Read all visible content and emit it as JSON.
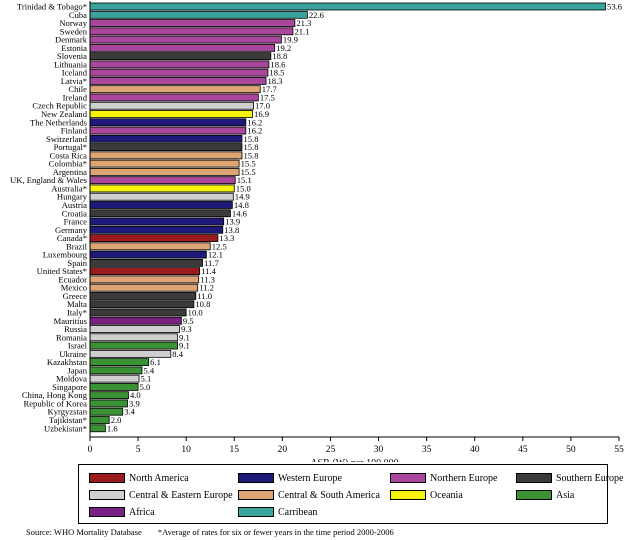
{
  "chart_data": {
    "type": "bar",
    "orientation": "horizontal",
    "title": "",
    "xlabel": "ASR (W)  per 100 000",
    "xlim": [
      0,
      55
    ],
    "xticks": [
      0,
      5,
      10,
      15,
      20,
      25,
      30,
      35,
      40,
      45,
      50,
      55
    ],
    "value_labels": true,
    "regions": {
      "North America": {
        "label": "North America",
        "color": "#9b1b1e"
      },
      "Western Europe": {
        "label": "Western  Europe",
        "color": "#1f1a7a"
      },
      "Northern Europe": {
        "label": "Northern Europe",
        "color": "#a8479c"
      },
      "Southern Europe": {
        "label": "Southern Europe",
        "color": "#3b3b3b"
      },
      "Central & Eastern Europe": {
        "label": "Central & Eastern Europe",
        "color": "#cfcfcf"
      },
      "Central & South America": {
        "label": "Central & South America",
        "color": "#dda474"
      },
      "Oceania": {
        "label": "Oceania",
        "color": "#f6f20c"
      },
      "Asia": {
        "label": "Asia",
        "color": "#3b9235"
      },
      "Africa": {
        "label": "Africa",
        "color": "#7a2283"
      },
      "Carribean": {
        "label": "Carribean",
        "color": "#3aa39b"
      }
    },
    "legend_order": [
      "North America",
      "Western Europe",
      "Northern Europe",
      "Southern Europe",
      "Central & Eastern Europe",
      "Central & South America",
      "Oceania",
      "Asia",
      "Africa",
      "Carribean"
    ],
    "bars": [
      {
        "label": "Trinidad & Tobago*",
        "value": 53.6,
        "value_text": "53.6",
        "region": "Carribean"
      },
      {
        "label": "Cuba",
        "value": 22.6,
        "value_text": "22.6",
        "region": "Carribean"
      },
      {
        "label": "Norway",
        "value": 21.3,
        "value_text": "21.3",
        "region": "Northern Europe"
      },
      {
        "label": "Sweden",
        "value": 21.1,
        "value_text": "21.1",
        "region": "Northern Europe"
      },
      {
        "label": "Denmark",
        "value": 19.9,
        "value_text": "19.9",
        "region": "Northern Europe"
      },
      {
        "label": "Estonia",
        "value": 19.2,
        "value_text": "19.2",
        "region": "Northern Europe"
      },
      {
        "label": "Slovenia",
        "value": 18.8,
        "value_text": "18.8",
        "region": "Southern Europe"
      },
      {
        "label": "Lithuania",
        "value": 18.6,
        "value_text": "18.6",
        "region": "Northern Europe"
      },
      {
        "label": "Iceland",
        "value": 18.5,
        "value_text": "18.5",
        "region": "Northern Europe"
      },
      {
        "label": "Latvia*",
        "value": 18.3,
        "value_text": "18.3",
        "region": "Northern Europe"
      },
      {
        "label": "Chile",
        "value": 17.7,
        "value_text": "17.7",
        "region": "Central & South America"
      },
      {
        "label": "Ireland",
        "value": 17.5,
        "value_text": "17.5",
        "region": "Northern Europe"
      },
      {
        "label": "Czech Republic",
        "value": 17.0,
        "value_text": "17.0",
        "region": "Central & Eastern Europe"
      },
      {
        "label": "New Zealand",
        "value": 16.9,
        "value_text": "16.9",
        "region": "Oceania"
      },
      {
        "label": "The Netherlands",
        "value": 16.2,
        "value_text": "16.2",
        "region": "Western Europe"
      },
      {
        "label": "Finland",
        "value": 16.2,
        "value_text": "16.2",
        "region": "Northern Europe"
      },
      {
        "label": "Switzerland",
        "value": 15.8,
        "value_text": "15.8",
        "region": "Western Europe"
      },
      {
        "label": "Portugal*",
        "value": 15.8,
        "value_text": "15.8",
        "region": "Southern Europe"
      },
      {
        "label": "Costa Rica",
        "value": 15.8,
        "value_text": "15.8",
        "region": "Central & South America"
      },
      {
        "label": "Colombia*",
        "value": 15.5,
        "value_text": "15.5",
        "region": "Central & South America"
      },
      {
        "label": "Argentina",
        "value": 15.5,
        "value_text": "15.5",
        "region": "Central & South America"
      },
      {
        "label": "UK, England & Wales",
        "value": 15.1,
        "value_text": "15.1",
        "region": "Northern Europe"
      },
      {
        "label": "Australia*",
        "value": 15.0,
        "value_text": "15.0",
        "region": "Oceania"
      },
      {
        "label": "Hungary",
        "value": 14.9,
        "value_text": "14.9",
        "region": "Central & Eastern Europe"
      },
      {
        "label": "Austria",
        "value": 14.8,
        "value_text": "14.8",
        "region": "Western Europe"
      },
      {
        "label": "Croatia",
        "value": 14.6,
        "value_text": "14.6",
        "region": "Southern Europe"
      },
      {
        "label": "France",
        "value": 13.9,
        "value_text": "13.9",
        "region": "Western Europe"
      },
      {
        "label": "Germany",
        "value": 13.8,
        "value_text": "13.8",
        "region": "Western Europe"
      },
      {
        "label": "Canada*",
        "value": 13.3,
        "value_text": "13.3",
        "region": "North America"
      },
      {
        "label": "Brazil",
        "value": 12.5,
        "value_text": "12.5",
        "region": "Central & South America"
      },
      {
        "label": "Luxembourg",
        "value": 12.1,
        "value_text": "12.1",
        "region": "Western Europe"
      },
      {
        "label": "Spain",
        "value": 11.7,
        "value_text": "11.7",
        "region": "Southern Europe"
      },
      {
        "label": "United States*",
        "value": 11.4,
        "value_text": "11.4",
        "region": "North America"
      },
      {
        "label": "Ecuador",
        "value": 11.3,
        "value_text": "11.3",
        "region": "Central & South America"
      },
      {
        "label": "Mexico",
        "value": 11.2,
        "value_text": "11.2",
        "region": "Central & South America"
      },
      {
        "label": "Greece",
        "value": 11.0,
        "value_text": "11.0",
        "region": "Southern Europe"
      },
      {
        "label": "Malta",
        "value": 10.8,
        "value_text": "10.8",
        "region": "Southern Europe"
      },
      {
        "label": "Italy*",
        "value": 10.0,
        "value_text": "10.0",
        "region": "Southern Europe"
      },
      {
        "label": "Mauritius",
        "value": 9.5,
        "value_text": "9.5",
        "region": "Africa"
      },
      {
        "label": "Russia",
        "value": 9.3,
        "value_text": "9.3",
        "region": "Central & Eastern Europe"
      },
      {
        "label": "Romania",
        "value": 9.1,
        "value_text": "9.1",
        "region": "Central & Eastern Europe"
      },
      {
        "label": "Israel",
        "value": 9.1,
        "value_text": "9.1",
        "region": "Asia"
      },
      {
        "label": "Ukraine",
        "value": 8.4,
        "value_text": "8.4",
        "region": "Central & Eastern Europe"
      },
      {
        "label": "Kazakhstan",
        "value": 6.1,
        "value_text": "6.1",
        "region": "Asia"
      },
      {
        "label": "Japan",
        "value": 5.4,
        "value_text": "5.4",
        "region": "Asia"
      },
      {
        "label": "Moldova",
        "value": 5.1,
        "value_text": "5.1",
        "region": "Central & Eastern Europe"
      },
      {
        "label": "Singapore",
        "value": 5.0,
        "value_text": "5.0",
        "region": "Asia"
      },
      {
        "label": "China, Hong Kong",
        "value": 4.0,
        "value_text": "4.0",
        "region": "Asia"
      },
      {
        "label": "Republic of Korea",
        "value": 3.9,
        "value_text": "3.9",
        "region": "Asia"
      },
      {
        "label": "Kyrgyzstan",
        "value": 3.4,
        "value_text": "3.4",
        "region": "Asia"
      },
      {
        "label": "Tajikistan*",
        "value": 2.0,
        "value_text": "2.0",
        "region": "Asia"
      },
      {
        "label": "Uzbekistan*",
        "value": 1.6,
        "value_text": "1.6",
        "region": "Asia"
      }
    ]
  },
  "footer": {
    "source": "Source:  WHO Mortality Database",
    "note": "*Average of rates for six or fewer years in the time period 2000-2006"
  }
}
